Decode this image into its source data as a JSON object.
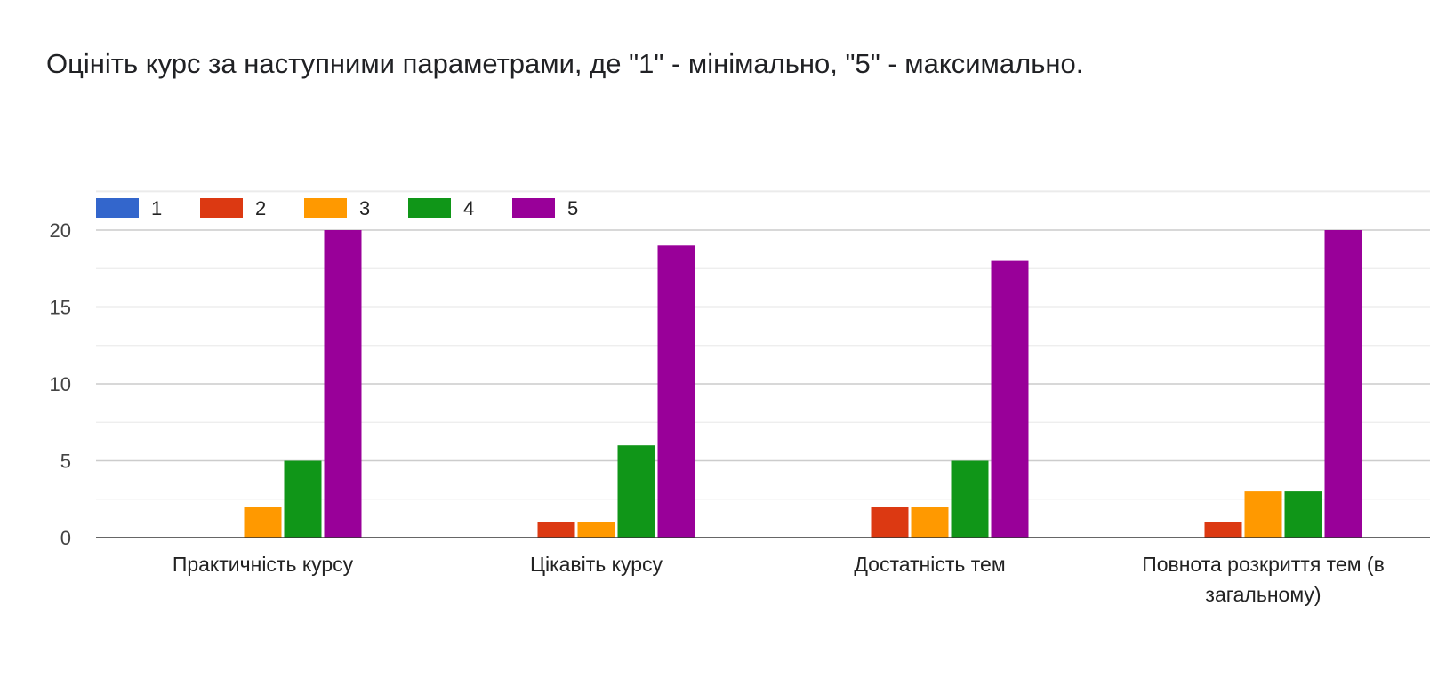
{
  "title": "Оцініть курс за наступними параметрами, де \"1\" - мінімально, \"5\" - максимально.",
  "chart_data": {
    "type": "bar",
    "categories": [
      [
        "Практичність курсу"
      ],
      [
        "Цікавіть курсу"
      ],
      [
        "Достатність тем"
      ],
      [
        "Повнота розкриття тем (в",
        "загальному)"
      ]
    ],
    "series": [
      {
        "name": "1",
        "color": "#3366cc",
        "values": [
          0,
          0,
          0,
          0
        ]
      },
      {
        "name": "2",
        "color": "#dc3912",
        "values": [
          0,
          1,
          2,
          1
        ]
      },
      {
        "name": "3",
        "color": "#ff9900",
        "values": [
          2,
          1,
          2,
          3
        ]
      },
      {
        "name": "4",
        "color": "#109618",
        "values": [
          5,
          6,
          5,
          3
        ]
      },
      {
        "name": "5",
        "color": "#990099",
        "values": [
          20,
          19,
          18,
          20
        ]
      }
    ],
    "yticks": [
      0,
      5,
      10,
      15,
      20
    ],
    "ylim": [
      0,
      20
    ],
    "grid": true,
    "legend": "top-left"
  }
}
